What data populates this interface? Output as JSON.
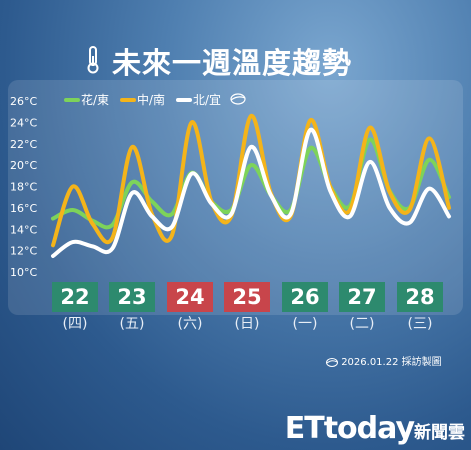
{
  "title": "未來一週溫度趨勢",
  "credit": "2026.01.22 採訪製圖",
  "brand": {
    "name": "ETtoday",
    "sub": "新聞雲"
  },
  "colors": {
    "east": "#7dd35a",
    "central_south": "#f4b41a",
    "north": "#ffffff",
    "weekday_date_bg": "#2d8a6e",
    "weekend_date_bg": "#c8454b"
  },
  "chart_data": {
    "type": "line",
    "ylim": [
      10,
      26
    ],
    "yticks": [
      "26°C",
      "24°C",
      "22°C",
      "20°C",
      "18°C",
      "16°C",
      "14°C",
      "12°C",
      "10°C"
    ],
    "days": [
      {
        "date": "22",
        "weekday": "(四)",
        "weekend": false
      },
      {
        "date": "23",
        "weekday": "(五)",
        "weekend": false
      },
      {
        "date": "24",
        "weekday": "(六)",
        "weekend": true
      },
      {
        "date": "25",
        "weekday": "(日)",
        "weekend": true
      },
      {
        "date": "26",
        "weekday": "(一)",
        "weekend": false
      },
      {
        "date": "27",
        "weekday": "(二)",
        "weekend": false
      },
      {
        "date": "28",
        "weekday": "(三)",
        "weekend": false
      }
    ],
    "series": [
      {
        "name": "花/東",
        "color": "#7dd35a",
        "values": [
          15,
          15.8,
          14.8,
          14.4,
          18.4,
          16.6,
          15.4,
          19.3,
          16.6,
          15.8,
          20,
          17.2,
          15.8,
          21.6,
          18,
          16.2,
          22.4,
          17.6,
          16,
          20.5,
          17
        ]
      },
      {
        "name": "中/南",
        "color": "#f4b41a",
        "values": [
          12.5,
          18,
          14.5,
          13.2,
          21.7,
          15.4,
          13.4,
          24,
          16.6,
          15.2,
          24.6,
          17.4,
          15.2,
          24.2,
          18,
          15.8,
          23.5,
          17.5,
          15.8,
          22.5,
          16
        ]
      },
      {
        "name": "北/宜",
        "color": "#ffffff",
        "values": [
          11.5,
          12.8,
          12.4,
          12.2,
          17.4,
          15.2,
          14.2,
          19.2,
          16.4,
          15.4,
          21.7,
          17.2,
          15.4,
          23.3,
          17.6,
          15.2,
          20.3,
          16,
          14.6,
          17.8,
          15.2
        ]
      }
    ]
  }
}
